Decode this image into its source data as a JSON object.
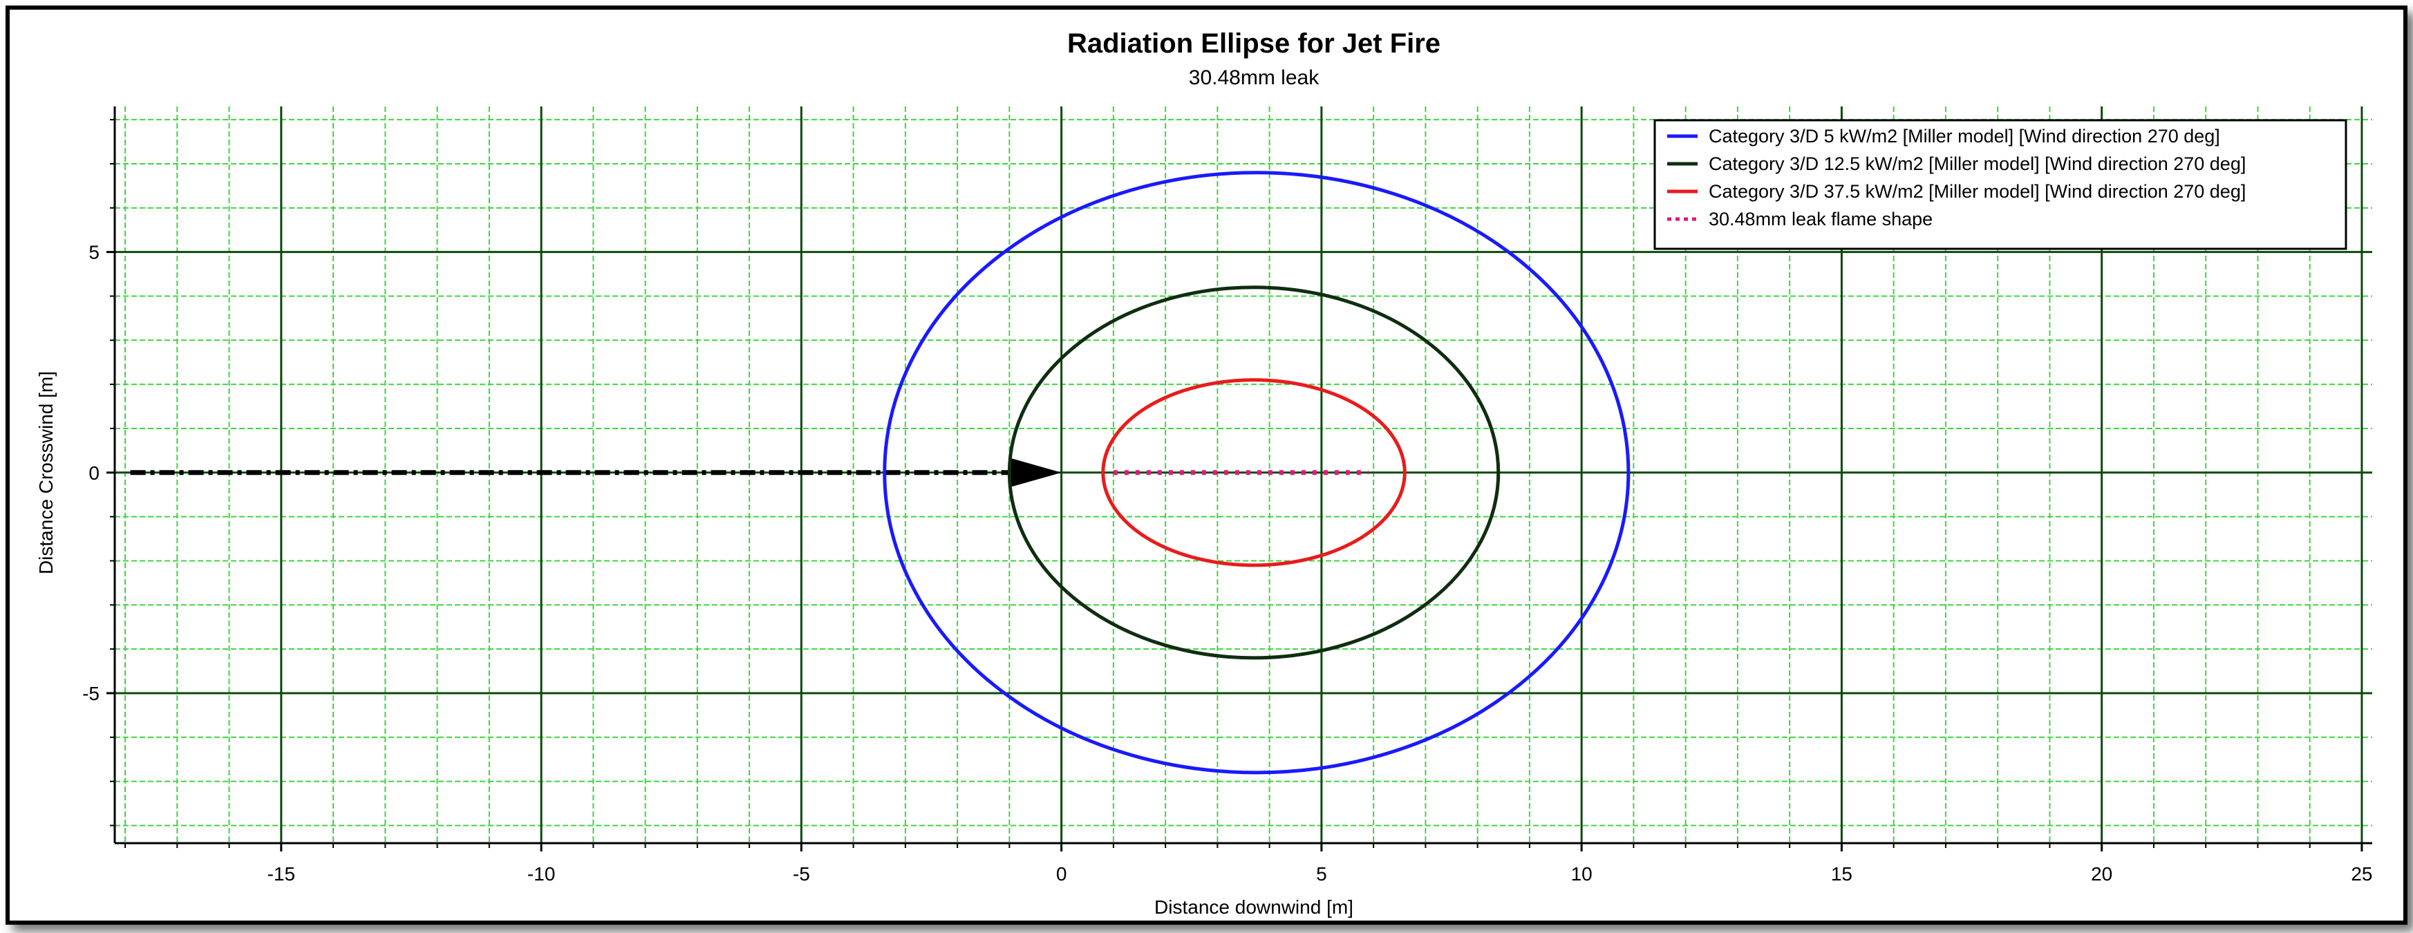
{
  "chart_data": {
    "type": "line",
    "title": "Radiation Ellipse for Jet Fire",
    "subtitle": "30.48mm leak",
    "xlabel": "Distance downwind [m]",
    "ylabel": "Distance Crosswind [m]",
    "xlim": [
      -18.2,
      25.2
    ],
    "ylim": [
      -8.4,
      8.3
    ],
    "x_ticks": [
      -15,
      -10,
      -5,
      0,
      5,
      10,
      15,
      20,
      25
    ],
    "y_ticks": [
      -5,
      0,
      5
    ],
    "x_tick_labels": [
      "-15",
      "-10",
      "-5",
      "0",
      "5",
      "10",
      "15",
      "20",
      "25"
    ],
    "y_tick_labels": [
      "-5",
      "0",
      "5"
    ],
    "grid": true,
    "grid_minor_step": 1,
    "legend_position": "top-right",
    "series": [
      {
        "name": "Category 3/D 5 kW/m2 [Miller model] [Wind direction 270 deg]",
        "shape": "ellipse",
        "x_min": -3.4,
        "x_max": 10.9,
        "y_half": 6.8,
        "color": "#1a1aff"
      },
      {
        "name": "Category 3/D 12.5 kW/m2 [Miller model] [Wind direction 270 deg]",
        "shape": "ellipse",
        "x_min": -1.0,
        "x_max": 8.4,
        "y_half": 4.2,
        "color": "#0f2e10"
      },
      {
        "name": "Category 3/D 37.5 kW/m2 [Miller model] [Wind direction 270 deg]",
        "shape": "ellipse",
        "x_min": 0.8,
        "x_max": 6.6,
        "y_half": 2.1,
        "color": "#e81c1c"
      },
      {
        "name": "30.48mm leak flame shape",
        "shape": "line",
        "x": [
          1.0,
          5.9
        ],
        "y": [
          0,
          0
        ],
        "color": "#e0197a",
        "style": "dotted"
      }
    ],
    "wind_arrow": {
      "x_start": -17.9,
      "x_end": 0,
      "y": 0,
      "color": "#000000"
    },
    "colors": {
      "major_grid": "#0c4a0c",
      "minor_grid": "#3ed63e"
    }
  }
}
